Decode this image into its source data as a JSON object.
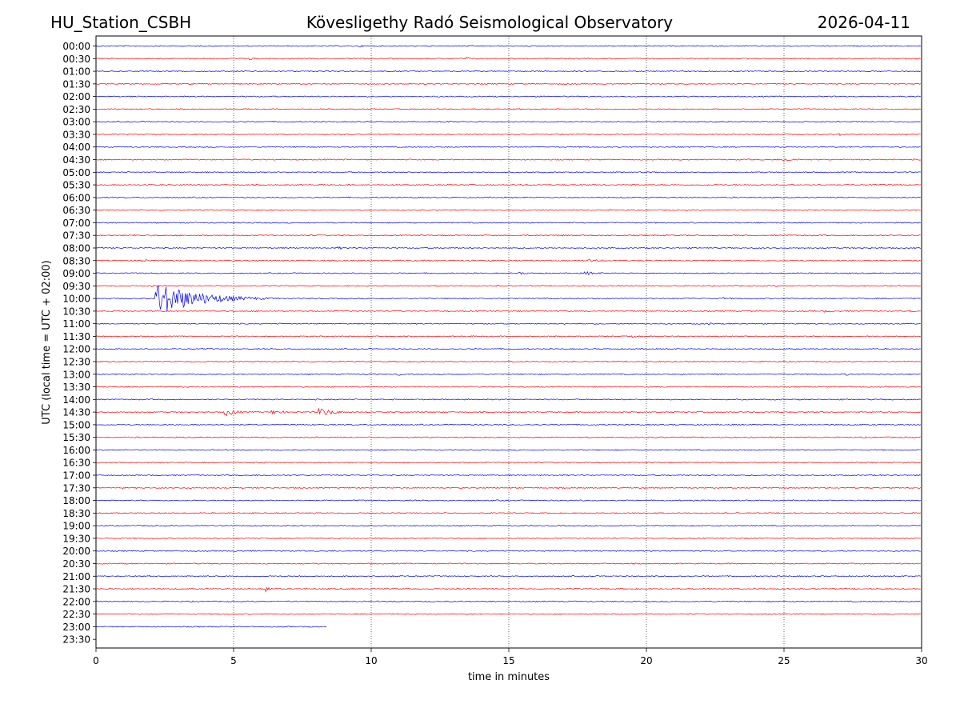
{
  "header": {
    "station": "HU_Station_CSBH",
    "observatory": "Kövesligethy Radó Seismological Observatory",
    "date": "2026-04-11"
  },
  "chart_data": {
    "type": "line",
    "title": "Kövesligethy Radó Seismological Observatory",
    "xlabel": "time in minutes",
    "ylabel": "UTC (local time = UTC + 02:00)",
    "xlim": [
      0,
      30
    ],
    "xticks": [
      0,
      5,
      10,
      15,
      20,
      25,
      30
    ],
    "vertical_gridlines": [
      5,
      10,
      15,
      20,
      25
    ],
    "grid": "vertical dotted",
    "trace_colors": [
      "#0000ff",
      "#ff0000"
    ],
    "rows": [
      {
        "label": "00:00",
        "color": "#0000ff",
        "end": 30,
        "events": [
          {
            "t": 9.6,
            "amp": 1.5,
            "dur": 0.4
          },
          {
            "t": 23.2,
            "amp": 1.2,
            "dur": 0.3
          }
        ]
      },
      {
        "label": "00:30",
        "color": "#ff0000",
        "end": 30,
        "events": [
          {
            "t": 5.6,
            "amp": 2,
            "dur": 0.4
          },
          {
            "t": 13.5,
            "amp": 2,
            "dur": 0.4
          }
        ]
      },
      {
        "label": "01:00",
        "color": "#0000ff",
        "end": 30,
        "events": []
      },
      {
        "label": "01:30",
        "color": "#ff0000",
        "end": 30,
        "events": [
          {
            "t": 10.8,
            "amp": 1.2,
            "dur": 0.4
          }
        ]
      },
      {
        "label": "02:00",
        "color": "#0000ff",
        "end": 30,
        "events": []
      },
      {
        "label": "02:30",
        "color": "#ff0000",
        "end": 30,
        "events": []
      },
      {
        "label": "03:00",
        "color": "#0000ff",
        "end": 30,
        "events": [
          {
            "t": 12.7,
            "amp": 1.5,
            "dur": 0.4
          }
        ]
      },
      {
        "label": "03:30",
        "color": "#ff0000",
        "end": 30,
        "events": [
          {
            "t": 27.0,
            "amp": 1.5,
            "dur": 0.8
          }
        ]
      },
      {
        "label": "04:00",
        "color": "#0000ff",
        "end": 30,
        "events": []
      },
      {
        "label": "04:30",
        "color": "#ff0000",
        "end": 30,
        "events": [
          {
            "t": 25.0,
            "amp": 2,
            "dur": 1.8
          }
        ]
      },
      {
        "label": "05:00",
        "color": "#0000ff",
        "end": 30,
        "events": []
      },
      {
        "label": "05:30",
        "color": "#ff0000",
        "end": 30,
        "events": [
          {
            "t": 1.8,
            "amp": 1.2,
            "dur": 0.4
          }
        ]
      },
      {
        "label": "06:00",
        "color": "#0000ff",
        "end": 30,
        "events": []
      },
      {
        "label": "06:30",
        "color": "#ff0000",
        "end": 30,
        "events": []
      },
      {
        "label": "07:00",
        "color": "#0000ff",
        "end": 30,
        "events": []
      },
      {
        "label": "07:30",
        "color": "#ff0000",
        "end": 30,
        "events": [
          {
            "t": 1.4,
            "amp": 1.2,
            "dur": 0.6
          },
          {
            "t": 17.0,
            "amp": 1.2,
            "dur": 0.5
          }
        ]
      },
      {
        "label": "08:00",
        "color": "#0000ff",
        "end": 30,
        "events": [
          {
            "t": 8.8,
            "amp": 2,
            "dur": 0.6
          },
          {
            "t": 18.2,
            "amp": 1.2,
            "dur": 1.0
          }
        ]
      },
      {
        "label": "08:30",
        "color": "#ff0000",
        "end": 30,
        "events": [
          {
            "t": 1.6,
            "amp": 2.5,
            "dur": 0.8
          },
          {
            "t": 14.3,
            "amp": 1.5,
            "dur": 0.4
          },
          {
            "t": 17.9,
            "amp": 2,
            "dur": 1.6
          }
        ]
      },
      {
        "label": "09:00",
        "color": "#0000ff",
        "end": 30,
        "events": [
          {
            "t": 15.4,
            "amp": 1.5,
            "dur": 1.2
          },
          {
            "t": 17.8,
            "amp": 2,
            "dur": 1.8
          }
        ]
      },
      {
        "label": "09:30",
        "color": "#ff0000",
        "end": 30,
        "events": [
          {
            "t": 2.0,
            "amp": 1.5,
            "dur": 0.4
          },
          {
            "t": 14.6,
            "amp": 1.2,
            "dur": 0.4
          },
          {
            "t": 24.7,
            "amp": 1.2,
            "dur": 0.5
          }
        ]
      },
      {
        "label": "10:00",
        "color": "#0000ff",
        "end": 30,
        "events": [
          {
            "t": 2.2,
            "amp": 19,
            "dur": 4.5
          },
          {
            "t": 22.8,
            "amp": 1.5,
            "dur": 0.4
          }
        ]
      },
      {
        "label": "10:30",
        "color": "#ff0000",
        "end": 30,
        "events": [
          {
            "t": 26.5,
            "amp": 1.5,
            "dur": 1.5
          },
          {
            "t": 29.6,
            "amp": 1.5,
            "dur": 0.4
          }
        ]
      },
      {
        "label": "11:00",
        "color": "#0000ff",
        "end": 30,
        "events": [
          {
            "t": 17.0,
            "amp": 1.2,
            "dur": 0.8
          },
          {
            "t": 22.3,
            "amp": 1.5,
            "dur": 0.8
          }
        ]
      },
      {
        "label": "11:30",
        "color": "#ff0000",
        "end": 30,
        "events": [
          {
            "t": 19.5,
            "amp": 1.5,
            "dur": 0.5
          },
          {
            "t": 20.2,
            "amp": 1.2,
            "dur": 0.3
          }
        ]
      },
      {
        "label": "12:00",
        "color": "#0000ff",
        "end": 30,
        "events": []
      },
      {
        "label": "12:30",
        "color": "#ff0000",
        "end": 30,
        "events": []
      },
      {
        "label": "13:00",
        "color": "#0000ff",
        "end": 30,
        "events": [
          {
            "t": 11.0,
            "amp": 2,
            "dur": 0.4
          },
          {
            "t": 22.3,
            "amp": 1.5,
            "dur": 2.0
          },
          {
            "t": 27.3,
            "amp": 1.5,
            "dur": 0.5
          }
        ]
      },
      {
        "label": "13:30",
        "color": "#ff0000",
        "end": 30,
        "events": []
      },
      {
        "label": "14:00",
        "color": "#0000ff",
        "end": 30,
        "events": []
      },
      {
        "label": "14:30",
        "color": "#ff0000",
        "end": 30,
        "events": [
          {
            "t": 4.7,
            "amp": 4.5,
            "dur": 1.5
          },
          {
            "t": 6.4,
            "amp": 2.5,
            "dur": 1.6
          },
          {
            "t": 8.1,
            "amp": 5,
            "dur": 1.7
          }
        ]
      },
      {
        "label": "15:00",
        "color": "#0000ff",
        "end": 30,
        "events": []
      },
      {
        "label": "15:30",
        "color": "#ff0000",
        "end": 30,
        "events": []
      },
      {
        "label": "16:00",
        "color": "#0000ff",
        "end": 30,
        "events": []
      },
      {
        "label": "16:30",
        "color": "#ff0000",
        "end": 30,
        "events": []
      },
      {
        "label": "17:00",
        "color": "#0000ff",
        "end": 30,
        "events": []
      },
      {
        "label": "17:30",
        "color": "#ff0000",
        "end": 30,
        "events": []
      },
      {
        "label": "18:00",
        "color": "#0000ff",
        "end": 30,
        "events": []
      },
      {
        "label": "18:30",
        "color": "#ff0000",
        "end": 30,
        "events": []
      },
      {
        "label": "19:00",
        "color": "#0000ff",
        "end": 30,
        "events": []
      },
      {
        "label": "19:30",
        "color": "#ff0000",
        "end": 30,
        "events": []
      },
      {
        "label": "20:00",
        "color": "#0000ff",
        "end": 30,
        "events": []
      },
      {
        "label": "20:30",
        "color": "#ff0000",
        "end": 30,
        "events": []
      },
      {
        "label": "21:00",
        "color": "#0000ff",
        "end": 30,
        "events": []
      },
      {
        "label": "21:30",
        "color": "#ff0000",
        "end": 30,
        "events": [
          {
            "t": 6.2,
            "amp": 6,
            "dur": 0.3
          }
        ]
      },
      {
        "label": "22:00",
        "color": "#0000ff",
        "end": 30,
        "events": []
      },
      {
        "label": "22:30",
        "color": "#ff0000",
        "end": 30,
        "events": []
      },
      {
        "label": "23:00",
        "color": "#0000ff",
        "end": 8.4,
        "events": []
      },
      {
        "label": "23:30",
        "color": "#ff0000",
        "end": 0,
        "events": []
      }
    ]
  }
}
